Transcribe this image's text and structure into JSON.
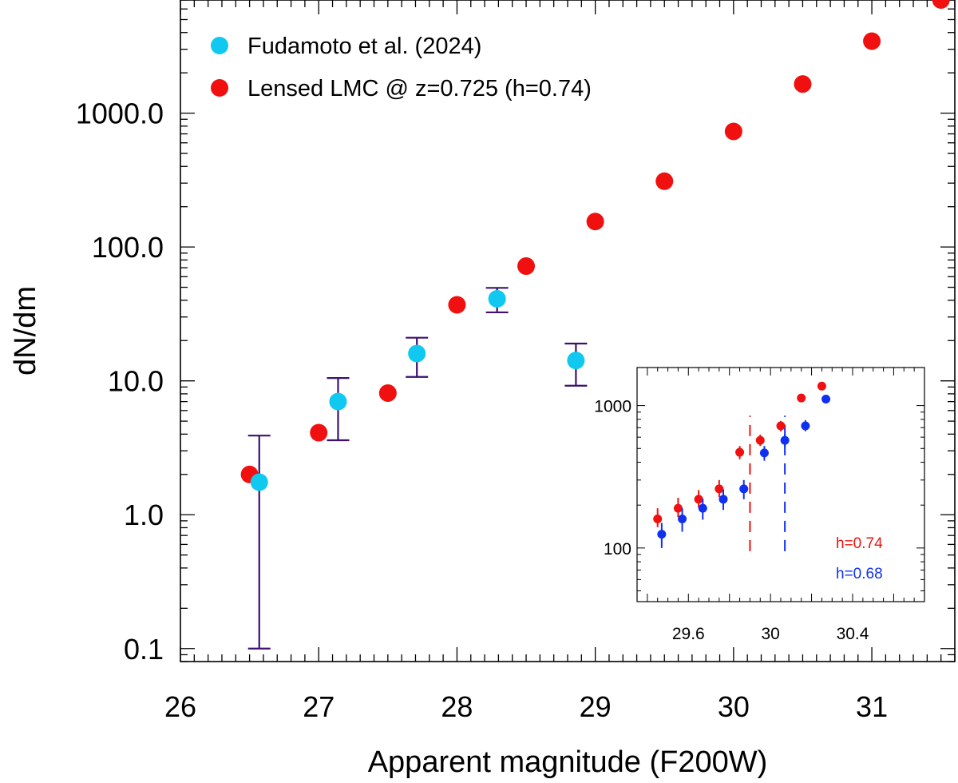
{
  "chart_data": {
    "type": "scatter",
    "xlabel": "Apparent magnitude (F200W)",
    "ylabel": "dN/dm",
    "xlim": [
      26,
      31.6
    ],
    "ylim": [
      0.08,
      7000
    ],
    "yscale": "log",
    "x_ticks": [
      "26",
      "27",
      "28",
      "29",
      "30",
      "31"
    ],
    "y_ticks": [
      "0.1",
      "1.0",
      "10.0",
      "100.0",
      "1000.0"
    ],
    "legend_position": "top-left",
    "series": [
      {
        "name": "Fudamoto et al. (2024)",
        "color": "#10c8f0",
        "points": [
          {
            "x": 26.57,
            "y": 1.75,
            "ylo": 0.1,
            "yhi": 3.9
          },
          {
            "x": 27.14,
            "y": 7.0,
            "ylo": 3.6,
            "yhi": 10.5
          },
          {
            "x": 27.71,
            "y": 16.0,
            "ylo": 10.7,
            "yhi": 21.0
          },
          {
            "x": 28.29,
            "y": 41.0,
            "ylo": 32.5,
            "yhi": 49.5
          },
          {
            "x": 28.86,
            "y": 14.2,
            "ylo": 9.2,
            "yhi": 19.0
          }
        ],
        "errorbar_color": "#3c1070"
      },
      {
        "name": "Lensed LMC @ z=0.725 (h=0.74)",
        "color": "#f01010",
        "points": [
          {
            "x": 26.5,
            "y": 2.0
          },
          {
            "x": 27.0,
            "y": 4.1
          },
          {
            "x": 27.5,
            "y": 8.1
          },
          {
            "x": 28.0,
            "y": 37.0
          },
          {
            "x": 28.5,
            "y": 72.0
          },
          {
            "x": 29.0,
            "y": 155.0
          },
          {
            "x": 29.5,
            "y": 310.0
          },
          {
            "x": 30.0,
            "y": 730.0
          },
          {
            "x": 30.5,
            "y": 1650.0
          },
          {
            "x": 31.0,
            "y": 3450.0
          },
          {
            "x": 31.5,
            "y": 7000.0
          }
        ]
      }
    ],
    "inset": {
      "xlim": [
        29.35,
        30.75
      ],
      "ylim": [
        42,
        1850
      ],
      "yscale": "log",
      "x_ticks": [
        "29.6",
        "30",
        "30.4"
      ],
      "y_ticks": [
        "100",
        "1000"
      ],
      "notes": [
        {
          "text": "h=0.74",
          "color": "#f01010"
        },
        {
          "text": "h=0.68",
          "color": "#1030f0"
        }
      ],
      "vlines": [
        {
          "x": 29.9,
          "color": "#f01010",
          "ymin": 95,
          "ymax": 850
        },
        {
          "x": 30.07,
          "color": "#1030f0",
          "ymin": 95,
          "ymax": 850
        }
      ],
      "series": [
        {
          "color": "#f01010",
          "points": [
            {
              "x": 29.45,
              "y": 160,
              "ylo": 140,
              "yhi": 190
            },
            {
              "x": 29.55,
              "y": 190,
              "ylo": 165,
              "yhi": 225
            },
            {
              "x": 29.65,
              "y": 220,
              "ylo": 192,
              "yhi": 255
            },
            {
              "x": 29.75,
              "y": 260,
              "ylo": 228,
              "yhi": 300
            },
            {
              "x": 29.85,
              "y": 470,
              "ylo": 420,
              "yhi": 520
            },
            {
              "x": 29.95,
              "y": 570,
              "ylo": 520,
              "yhi": 625
            },
            {
              "x": 30.05,
              "y": 720,
              "ylo": 660,
              "yhi": 780
            },
            {
              "x": 30.15,
              "y": 1130,
              "ylo": 1060,
              "yhi": 1200
            },
            {
              "x": 30.25,
              "y": 1370,
              "ylo": 1300,
              "yhi": 1440
            }
          ]
        },
        {
          "color": "#1030f0",
          "points": [
            {
              "x": 29.47,
              "y": 125,
              "ylo": 100,
              "yhi": 150
            },
            {
              "x": 29.57,
              "y": 160,
              "ylo": 130,
              "yhi": 190
            },
            {
              "x": 29.67,
              "y": 190,
              "ylo": 158,
              "yhi": 222
            },
            {
              "x": 29.77,
              "y": 220,
              "ylo": 185,
              "yhi": 258
            },
            {
              "x": 29.87,
              "y": 260,
              "ylo": 220,
              "yhi": 300
            },
            {
              "x": 29.97,
              "y": 465,
              "ylo": 410,
              "yhi": 520
            },
            {
              "x": 30.07,
              "y": 570,
              "ylo": 510,
              "yhi": 630
            },
            {
              "x": 30.17,
              "y": 720,
              "ylo": 660,
              "yhi": 790
            },
            {
              "x": 30.27,
              "y": 1110,
              "ylo": 1040,
              "yhi": 1180
            }
          ]
        }
      ]
    }
  }
}
